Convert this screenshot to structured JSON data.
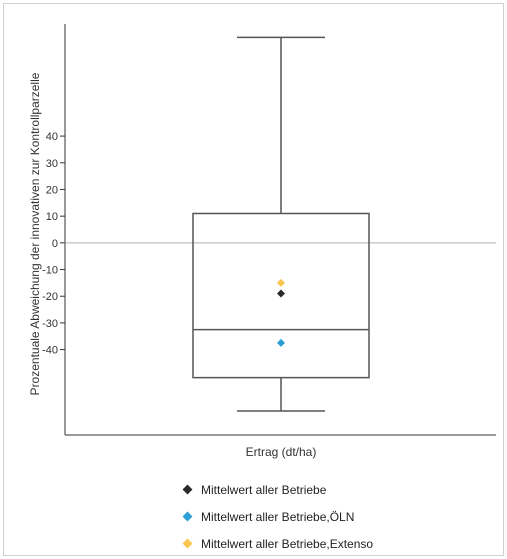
{
  "chart_data": {
    "type": "boxplot",
    "xlabel": "Ertrag (dt/ha)",
    "ylabel": "Prozentuale Abweichung der innovativen zur Kontrollparzelle",
    "y_ticks": [
      -40,
      -30,
      -20,
      -10,
      0,
      10,
      20,
      30,
      40
    ],
    "y_tick_labels": [
      "-40",
      "-30",
      "-20",
      "-10",
      "0",
      "10",
      "20",
      "30",
      "40"
    ],
    "ylim": [
      -72,
      82
    ],
    "reference_line": 0,
    "box": {
      "category": "Ertrag (dt/ha)",
      "whisker_low": -63,
      "q1": -50.5,
      "median": -32.5,
      "q3": 11,
      "whisker_high": 77
    },
    "points": [
      {
        "name": "Mittelwert aller Betriebe",
        "value": -19,
        "color": "#2b2b2b"
      },
      {
        "name": "Mittelwert aller Betriebe,ÖLN",
        "value": -37.5,
        "color": "#2a9fd6"
      },
      {
        "name": "Mittelwert aller Betriebe,Extenso",
        "value": -15,
        "color": "#f9c74f"
      }
    ],
    "legend_position": "bottom"
  },
  "legend": {
    "items": [
      {
        "label": "Mittelwert aller Betriebe",
        "color": "#2b2b2b"
      },
      {
        "label": "Mittelwert aller Betriebe,ÖLN",
        "color": "#2a9fd6"
      },
      {
        "label": "Mittelwert aller Betriebe,Extenso",
        "color": "#f9c74f"
      }
    ]
  }
}
